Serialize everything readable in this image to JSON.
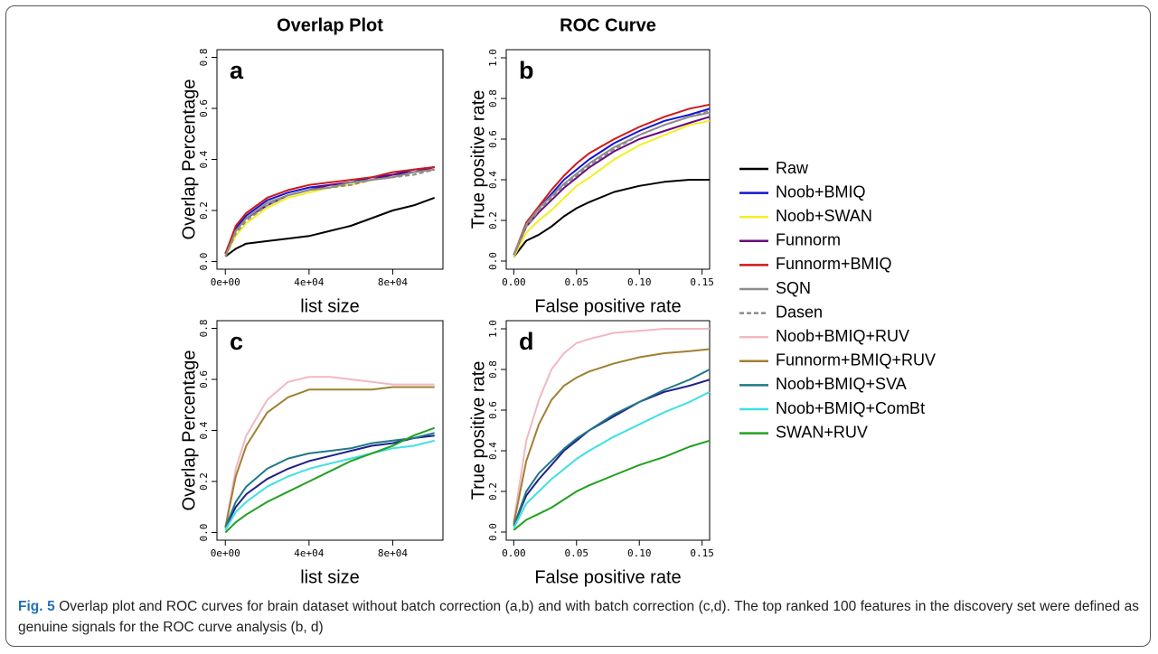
{
  "chart_data": [
    {
      "type": "line",
      "title": "Overlap Plot",
      "label": "a",
      "xlabel": "list size",
      "ylabel": "Overlap Percentage",
      "xlim": [
        -4000,
        104000
      ],
      "ylim": [
        -0.03,
        0.83
      ],
      "xticks": [
        {
          "value": 0,
          "label": "0e+00"
        },
        {
          "value": 40000,
          "label": "4e+04"
        },
        {
          "value": 80000,
          "label": "8e+04"
        }
      ],
      "yticks": [
        {
          "value": 0,
          "label": "0.0"
        },
        0.2,
        0.4,
        0.6,
        0.8
      ],
      "x": [
        0,
        5000,
        10000,
        20000,
        30000,
        40000,
        50000,
        60000,
        70000,
        80000,
        90000,
        100000
      ],
      "series": [
        {
          "name": "Raw",
          "color": "#000000",
          "values": [
            0.02,
            0.05,
            0.07,
            0.08,
            0.09,
            0.1,
            0.12,
            0.14,
            0.17,
            0.2,
            0.22,
            0.25
          ]
        },
        {
          "name": "Noob+BMIQ",
          "color": "#1414d2",
          "values": [
            0.03,
            0.13,
            0.18,
            0.24,
            0.27,
            0.29,
            0.3,
            0.31,
            0.33,
            0.34,
            0.36,
            0.37
          ]
        },
        {
          "name": "Noob+SWAN",
          "color": "#f2f020",
          "values": [
            0.02,
            0.1,
            0.15,
            0.21,
            0.25,
            0.27,
            0.29,
            0.3,
            0.32,
            0.33,
            0.35,
            0.36
          ]
        },
        {
          "name": "Funnorm",
          "color": "#6a0a7a",
          "values": [
            0.03,
            0.12,
            0.17,
            0.22,
            0.26,
            0.28,
            0.3,
            0.31,
            0.32,
            0.34,
            0.35,
            0.37
          ]
        },
        {
          "name": "Funnorm+BMIQ",
          "color": "#d01818",
          "values": [
            0.03,
            0.14,
            0.19,
            0.25,
            0.28,
            0.3,
            0.31,
            0.32,
            0.33,
            0.35,
            0.36,
            0.37
          ]
        },
        {
          "name": "SQN",
          "color": "#8c8c8c",
          "values": [
            0.02,
            0.12,
            0.17,
            0.23,
            0.26,
            0.28,
            0.29,
            0.31,
            0.32,
            0.33,
            0.35,
            0.36
          ]
        },
        {
          "name": "Dasen",
          "color": "#8c8c8c",
          "dash": true,
          "values": [
            0.02,
            0.11,
            0.16,
            0.22,
            0.26,
            0.28,
            0.29,
            0.3,
            0.32,
            0.33,
            0.34,
            0.36
          ]
        }
      ]
    },
    {
      "type": "line",
      "title": "ROC Curve",
      "label": "b",
      "xlabel": "False positive rate",
      "ylabel": "True positive rate",
      "xlim": [
        -0.006,
        0.156
      ],
      "ylim": [
        -0.04,
        1.04
      ],
      "xticks": [
        {
          "value": 0,
          "label": "0.00"
        },
        0.05,
        {
          "value": 0.1,
          "label": "0.10"
        },
        0.15
      ],
      "yticks": [
        {
          "value": 0,
          "label": "0.0"
        },
        0.2,
        0.4,
        0.6,
        0.8,
        {
          "value": 1,
          "label": "1.0"
        }
      ],
      "x": [
        0,
        0.01,
        0.02,
        0.03,
        0.04,
        0.05,
        0.06,
        0.08,
        0.1,
        0.12,
        0.14,
        0.156
      ],
      "series": [
        {
          "name": "Raw",
          "color": "#000000",
          "values": [
            0.02,
            0.1,
            0.13,
            0.17,
            0.22,
            0.26,
            0.29,
            0.34,
            0.37,
            0.39,
            0.4,
            0.4
          ]
        },
        {
          "name": "Noob+BMIQ",
          "color": "#1414d2",
          "values": [
            0.03,
            0.18,
            0.26,
            0.33,
            0.4,
            0.45,
            0.5,
            0.58,
            0.64,
            0.69,
            0.72,
            0.75
          ]
        },
        {
          "name": "Noob+SWAN",
          "color": "#f2f020",
          "values": [
            0.02,
            0.14,
            0.2,
            0.25,
            0.31,
            0.37,
            0.41,
            0.5,
            0.57,
            0.62,
            0.67,
            0.69
          ]
        },
        {
          "name": "Funnorm",
          "color": "#6a0a7a",
          "values": [
            0.03,
            0.17,
            0.24,
            0.3,
            0.36,
            0.41,
            0.46,
            0.54,
            0.6,
            0.64,
            0.68,
            0.71
          ]
        },
        {
          "name": "Funnorm+BMIQ",
          "color": "#d01818",
          "values": [
            0.03,
            0.19,
            0.27,
            0.35,
            0.42,
            0.48,
            0.53,
            0.6,
            0.66,
            0.71,
            0.75,
            0.77
          ]
        },
        {
          "name": "SQN",
          "color": "#8c8c8c",
          "values": [
            0.03,
            0.18,
            0.26,
            0.32,
            0.38,
            0.43,
            0.48,
            0.56,
            0.62,
            0.67,
            0.71,
            0.73
          ]
        },
        {
          "name": "Dasen",
          "color": "#8c8c8c",
          "dash": true,
          "values": [
            0.03,
            0.17,
            0.25,
            0.31,
            0.37,
            0.42,
            0.47,
            0.55,
            0.62,
            0.67,
            0.71,
            0.74
          ]
        }
      ]
    },
    {
      "type": "line",
      "label": "c",
      "xlabel": "list size",
      "ylabel": "Overlap Percentage",
      "xlim": [
        -4000,
        104000
      ],
      "ylim": [
        -0.03,
        0.83
      ],
      "xticks": [
        {
          "value": 0,
          "label": "0e+00"
        },
        {
          "value": 40000,
          "label": "4e+04"
        },
        {
          "value": 80000,
          "label": "8e+04"
        }
      ],
      "yticks": [
        {
          "value": 0,
          "label": "0.0"
        },
        0.2,
        0.4,
        0.6,
        0.8
      ],
      "x": [
        0,
        5000,
        10000,
        20000,
        30000,
        40000,
        50000,
        60000,
        70000,
        80000,
        90000,
        100000
      ],
      "series": [
        {
          "name": "Noob+BMIQ",
          "color": "#20208a",
          "values": [
            0.02,
            0.1,
            0.15,
            0.21,
            0.25,
            0.28,
            0.3,
            0.32,
            0.34,
            0.35,
            0.37,
            0.38
          ]
        },
        {
          "name": "Noob+BMIQ+RUV",
          "color": "#f2b8c2",
          "values": [
            0.02,
            0.25,
            0.38,
            0.52,
            0.59,
            0.61,
            0.61,
            0.6,
            0.59,
            0.58,
            0.58,
            0.58
          ]
        },
        {
          "name": "Funnorm+BMIQ+RUV",
          "color": "#a08032",
          "values": [
            0.02,
            0.22,
            0.34,
            0.47,
            0.53,
            0.56,
            0.56,
            0.56,
            0.56,
            0.57,
            0.57,
            0.57
          ]
        },
        {
          "name": "Noob+BMIQ+SVA",
          "color": "#207888",
          "values": [
            0.02,
            0.12,
            0.18,
            0.25,
            0.29,
            0.31,
            0.32,
            0.33,
            0.35,
            0.36,
            0.37,
            0.39
          ]
        },
        {
          "name": "Noob+BMIQ+ComBt",
          "color": "#40e0e0",
          "values": [
            0.01,
            0.08,
            0.12,
            0.18,
            0.22,
            0.25,
            0.27,
            0.29,
            0.31,
            0.33,
            0.34,
            0.36
          ]
        },
        {
          "name": "SWAN+RUV",
          "color": "#22a022",
          "values": [
            0.0,
            0.04,
            0.07,
            0.12,
            0.16,
            0.2,
            0.24,
            0.28,
            0.31,
            0.34,
            0.38,
            0.41
          ]
        }
      ]
    },
    {
      "type": "line",
      "label": "d",
      "xlabel": "False positive rate",
      "ylabel": "True positive rate",
      "xlim": [
        -0.006,
        0.156
      ],
      "ylim": [
        -0.04,
        1.04
      ],
      "xticks": [
        {
          "value": 0,
          "label": "0.00"
        },
        0.05,
        {
          "value": 0.1,
          "label": "0.10"
        },
        0.15
      ],
      "yticks": [
        {
          "value": 0,
          "label": "0.0"
        },
        0.2,
        0.4,
        0.6,
        0.8,
        {
          "value": 1,
          "label": "1.0"
        }
      ],
      "x": [
        0,
        0.01,
        0.02,
        0.03,
        0.04,
        0.05,
        0.06,
        0.08,
        0.1,
        0.12,
        0.14,
        0.156
      ],
      "series": [
        {
          "name": "Noob+BMIQ",
          "color": "#20208a",
          "values": [
            0.03,
            0.18,
            0.26,
            0.33,
            0.4,
            0.45,
            0.5,
            0.57,
            0.64,
            0.69,
            0.72,
            0.75
          ]
        },
        {
          "name": "Noob+BMIQ+RUV",
          "color": "#f2b8c2",
          "values": [
            0.05,
            0.45,
            0.65,
            0.8,
            0.88,
            0.93,
            0.95,
            0.98,
            0.99,
            1.0,
            1.0,
            1.0
          ]
        },
        {
          "name": "Funnorm+BMIQ+RUV",
          "color": "#a08032",
          "values": [
            0.04,
            0.35,
            0.53,
            0.65,
            0.72,
            0.76,
            0.79,
            0.83,
            0.86,
            0.88,
            0.89,
            0.9
          ]
        },
        {
          "name": "Noob+BMIQ+SVA",
          "color": "#207888",
          "values": [
            0.03,
            0.2,
            0.29,
            0.35,
            0.41,
            0.46,
            0.5,
            0.58,
            0.64,
            0.7,
            0.75,
            0.8
          ]
        },
        {
          "name": "Noob+BMIQ+ComBt",
          "color": "#40e0e0",
          "values": [
            0.02,
            0.14,
            0.2,
            0.26,
            0.31,
            0.36,
            0.4,
            0.47,
            0.53,
            0.59,
            0.64,
            0.69
          ]
        },
        {
          "name": "SWAN+RUV",
          "color": "#22a022",
          "values": [
            0.01,
            0.06,
            0.09,
            0.12,
            0.16,
            0.2,
            0.23,
            0.28,
            0.33,
            0.37,
            0.42,
            0.45
          ]
        }
      ]
    }
  ],
  "caption": {
    "label": "Fig. 5",
    "text": "Overlap plot and ROC curves for brain dataset without batch correction (a,b) and with batch correction (c,d). The top ranked 100 features in the discovery set were defined as genuine signals for the ROC curve analysis (b, d)"
  }
}
